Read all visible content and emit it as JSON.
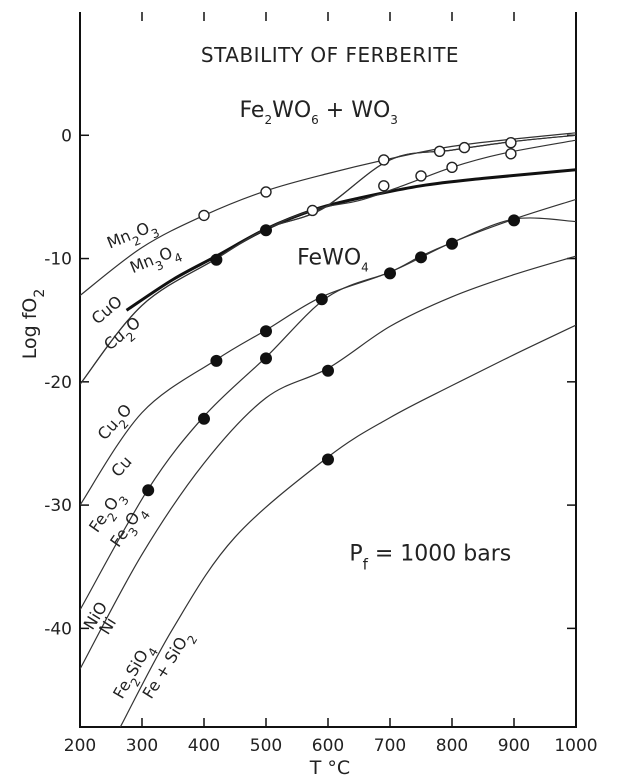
{
  "chart_data": {
    "type": "line",
    "title": "STABILITY OF FERBERITE",
    "xlabel": "T °C",
    "ylabel": "Log fO2",
    "xlim": [
      200,
      1000
    ],
    "ylim": [
      -48,
      10
    ],
    "x_ticks": [
      {
        "value": 200,
        "label": "200"
      },
      {
        "value": 300,
        "label": "300"
      },
      {
        "value": 400,
        "label": "400"
      },
      {
        "value": 500,
        "label": "500"
      },
      {
        "value": 600,
        "label": "600"
      },
      {
        "value": 700,
        "label": "700"
      },
      {
        "value": 800,
        "label": "800"
      },
      {
        "value": 900,
        "label": "900"
      },
      {
        "value": 1000,
        "label": "1000"
      }
    ],
    "y_ticks": [
      {
        "value": 0,
        "label": "0"
      },
      {
        "value": -10,
        "label": "-10"
      },
      {
        "value": -20,
        "label": "-20"
      },
      {
        "value": -30,
        "label": "-30"
      },
      {
        "value": -40,
        "label": "-40"
      }
    ],
    "grid": false,
    "annotations": [
      {
        "text": "Fe2WO6 + WO3",
        "x": 585,
        "y": 1.5,
        "kind": "field"
      },
      {
        "text": "FeWO4",
        "x": 608,
        "y": -10.5,
        "kind": "field"
      },
      {
        "text": "Pf = 1000 bars",
        "x": 765,
        "y": -34.5,
        "kind": "field"
      }
    ],
    "series": [
      {
        "name": "Mn2O3/Mn3O4",
        "style": "thin",
        "label_x": 265,
        "label_y": -9.5,
        "x": [
          200,
          300,
          400,
          500,
          600,
          700,
          800,
          900,
          1000
        ],
        "y": [
          -13,
          -9.1,
          -6.5,
          -4.5,
          -3.1,
          -1.9,
          -0.9,
          -0.3,
          0.2
        ]
      },
      {
        "name": "FeWO4 upper limit",
        "style": "bold",
        "x": [
          275,
          350,
          420,
          500,
          580,
          650,
          750,
          850,
          1000
        ],
        "y": [
          -14.2,
          -11.7,
          -9.8,
          -7.6,
          -6.0,
          -5.1,
          -4.1,
          -3.5,
          -2.8
        ]
      },
      {
        "name": "FeWO4 lower limit",
        "style": "thin",
        "x": [
          420,
          500,
          580,
          650,
          720,
          800,
          880,
          1000
        ],
        "y": [
          -10,
          -7.6,
          -6,
          -5.3,
          -4.1,
          -2.6,
          -1.5,
          -0.4
        ]
      },
      {
        "name": "Cu/Cu2O lower boundary",
        "style": "thin",
        "x": [
          200,
          300,
          420,
          500,
          590,
          700,
          800,
          900,
          1000
        ],
        "y": [
          -20.2,
          -13.8,
          -10.0,
          -7.6,
          -6.0,
          -2.0,
          -1.2,
          -0.5,
          0.0
        ]
      },
      {
        "name": "CuO/Cu2O",
        "style": "thin",
        "label_x": 225,
        "label_y": -16.5,
        "x": [
          200,
          300,
          420,
          500,
          590,
          700,
          800,
          900,
          1000
        ],
        "y": [
          -20.2,
          -13.8,
          -10.0,
          -7.6,
          -6.0,
          -2.0,
          -1.2,
          -0.5,
          0.0
        ]
      },
      {
        "name": "Cu2O/Cu",
        "style": "thin",
        "label_x": 250,
        "label_y": -24.5,
        "x": [
          200,
          300,
          420,
          500,
          590,
          700,
          800,
          900,
          1000
        ],
        "y": [
          -30,
          -22.5,
          -18.2,
          -15.8,
          -13.1,
          -11.1,
          -8.7,
          -6.8,
          -5.2
        ]
      },
      {
        "name": "Fe2O3/Fe3O4",
        "style": "thin",
        "label_x": 245,
        "label_y": -31.5,
        "x": [
          200,
          310,
          400,
          500,
          600,
          700,
          750,
          800,
          900,
          1000
        ],
        "y": [
          -38.5,
          -28.7,
          -22.8,
          -18.0,
          -13.1,
          -11.1,
          -9.8,
          -8.7,
          -6.8,
          -7.0
        ]
      },
      {
        "name": "NiO/Ni",
        "style": "thin",
        "label_x": 220,
        "label_y": -39.5,
        "x": [
          200,
          300,
          400,
          500,
          600,
          700,
          800,
          900,
          1000
        ],
        "y": [
          -43.3,
          -34.0,
          -26.6,
          -21.3,
          -18.9,
          -15.5,
          -13.1,
          -11.3,
          -9.8
        ]
      },
      {
        "name": "Fe2SiO4/Fe+SiO2",
        "style": "thin",
        "label_x": 265,
        "label_y": -43,
        "x": [
          265,
          350,
          450,
          600,
          700,
          800,
          900,
          1000
        ],
        "y": [
          -48,
          -40.0,
          -32.6,
          -26.1,
          -22.9,
          -20.3,
          -17.8,
          -15.4
        ]
      }
    ],
    "curve_labels": [
      {
        "text": "Mn2O3",
        "x": 248,
        "y": -9.2,
        "angle": -22
      },
      {
        "text": "Mn3O4",
        "x": 285,
        "y": -11.2,
        "angle": -22
      },
      {
        "text": "CuO",
        "x": 228,
        "y": -15.4,
        "angle": -40
      },
      {
        "text": "Cu2O",
        "x": 248,
        "y": -17.5,
        "angle": -40
      },
      {
        "text": "Cu2O",
        "x": 240,
        "y": -24.8,
        "angle": -48
      },
      {
        "text": "Cu",
        "x": 262,
        "y": -27.8,
        "angle": -48
      },
      {
        "text": "Fe2O3",
        "x": 228,
        "y": -32.3,
        "angle": -55
      },
      {
        "text": "Fe3O4",
        "x": 262,
        "y": -33.5,
        "angle": -55
      },
      {
        "text": "NiO",
        "x": 220,
        "y": -40.2,
        "angle": -58
      },
      {
        "text": "Ni",
        "x": 245,
        "y": -40.6,
        "angle": -58
      },
      {
        "text": "Fe2SiO4",
        "x": 268,
        "y": -45.8,
        "angle": -60
      },
      {
        "text": "Fe + SiO2",
        "x": 315,
        "y": -45.8,
        "angle": -58
      }
    ],
    "points_open": [
      {
        "x": 400,
        "y": -6.5
      },
      {
        "x": 500,
        "y": -4.6
      },
      {
        "x": 575,
        "y": -6.1
      },
      {
        "x": 690,
        "y": -2.0
      },
      {
        "x": 690,
        "y": -4.1
      },
      {
        "x": 750,
        "y": -3.3
      },
      {
        "x": 780,
        "y": -1.3
      },
      {
        "x": 800,
        "y": -2.6
      },
      {
        "x": 820,
        "y": -1.0
      },
      {
        "x": 895,
        "y": -0.6
      },
      {
        "x": 895,
        "y": -1.5
      }
    ],
    "points_filled": [
      {
        "x": 420,
        "y": -10.1
      },
      {
        "x": 500,
        "y": -7.7
      },
      {
        "x": 420,
        "y": -18.3
      },
      {
        "x": 500,
        "y": -15.9
      },
      {
        "x": 590,
        "y": -13.3
      },
      {
        "x": 500,
        "y": -18.1
      },
      {
        "x": 600,
        "y": -19.1
      },
      {
        "x": 400,
        "y": -23.0
      },
      {
        "x": 310,
        "y": -28.8
      },
      {
        "x": 600,
        "y": -26.3
      },
      {
        "x": 700,
        "y": -11.2
      },
      {
        "x": 750,
        "y": -9.9
      },
      {
        "x": 800,
        "y": -8.8
      },
      {
        "x": 900,
        "y": -6.9
      }
    ]
  }
}
